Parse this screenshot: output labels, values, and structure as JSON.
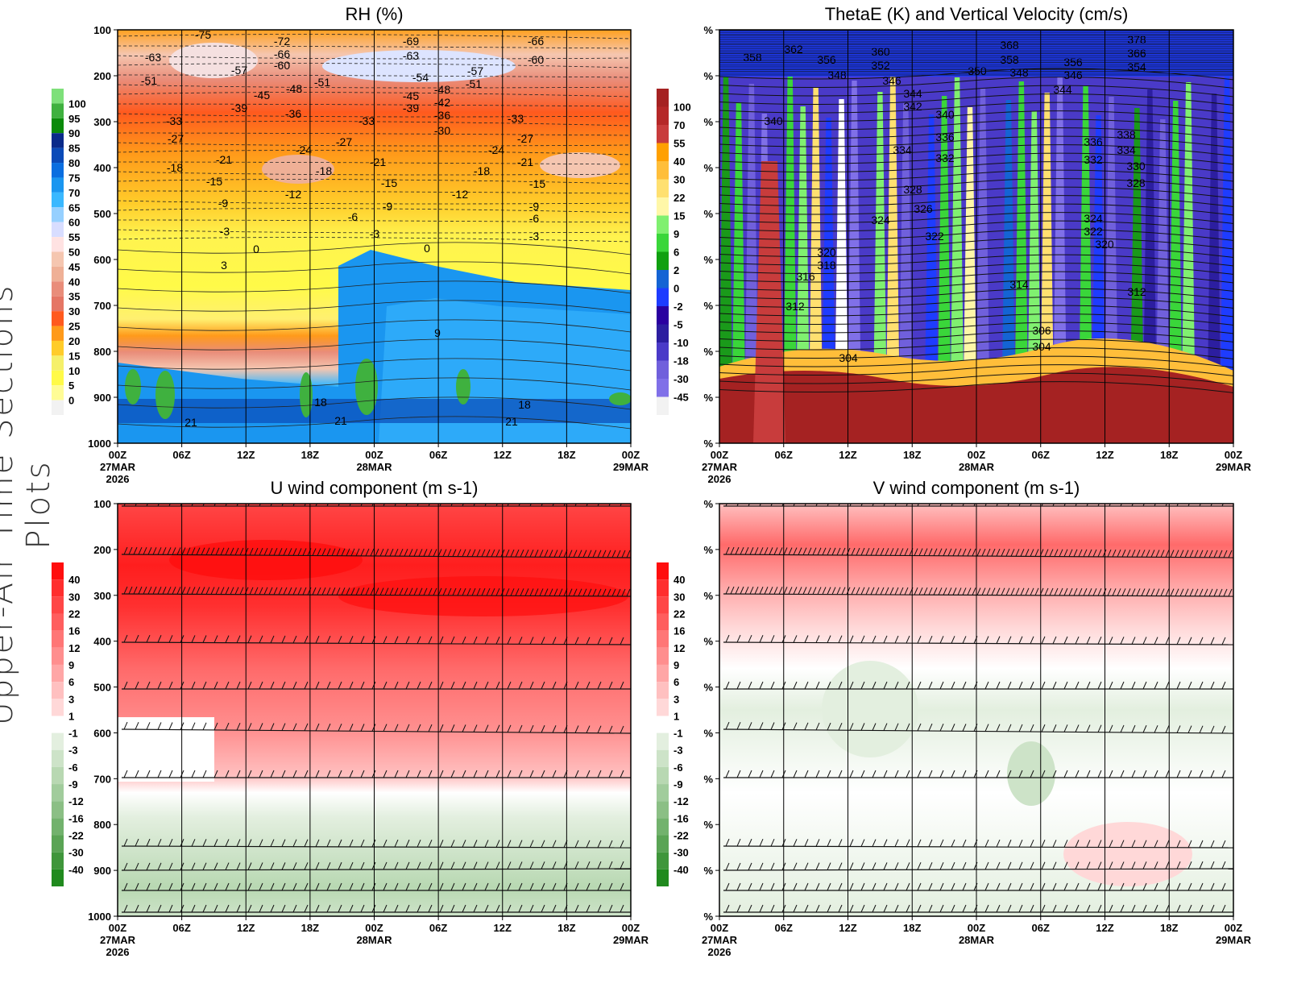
{
  "page_title": "Upper-Air Time Sections Plots",
  "chart_data": [
    {
      "type": "heatmap",
      "title": "RH (%)",
      "yticks": [
        "100",
        "200",
        "300",
        "400",
        "500",
        "600",
        "700",
        "800",
        "900",
        "1000"
      ],
      "xticks": [
        "00Z",
        "06Z",
        "12Z",
        "18Z",
        "00Z",
        "06Z",
        "12Z",
        "18Z",
        "00Z"
      ],
      "xdates": {
        "start": "27MAR",
        "mid": "28MAR",
        "end": "29MAR",
        "year": "2026"
      },
      "colorbar": [
        "100",
        "95",
        "90",
        "85",
        "80",
        "75",
        "70",
        "65",
        "60",
        "55",
        "50",
        "45",
        "40",
        "35",
        "30",
        "25",
        "20",
        "15",
        "10",
        "5",
        "0"
      ],
      "contour_labels": [
        "-75",
        "-72",
        "-69",
        "-66",
        "-66",
        "-63",
        "-63",
        "-60",
        "-60",
        "-57",
        "-57",
        "-51",
        "-54",
        "-51",
        "-51",
        "-48",
        "-48",
        "-45",
        "-45",
        "-42",
        "-39",
        "-39",
        "-36",
        "-36",
        "-33",
        "-33",
        "-33",
        "-30",
        "-27",
        "-27",
        "-27",
        "-24",
        "-24",
        "-21",
        "-21",
        "-21",
        "-18",
        "-18",
        "-18",
        "-15",
        "-15",
        "-15",
        "-12",
        "-12",
        "-9",
        "-9",
        "-9",
        "-6",
        "-6",
        "-3",
        "-3",
        "-3",
        "0",
        "0",
        "3",
        "9",
        "18",
        "18",
        "21",
        "21",
        "21"
      ]
    },
    {
      "type": "heatmap",
      "title": "ThetaE (K) and Vertical Velocity (cm/s)",
      "yticks": [
        "%",
        "%",
        "%",
        "%",
        "%",
        "%",
        "%",
        "%",
        "%",
        "%"
      ],
      "xticks": [
        "00Z",
        "06Z",
        "12Z",
        "18Z",
        "00Z",
        "06Z",
        "12Z",
        "18Z",
        "00Z"
      ],
      "xdates": {
        "start": "27MAR",
        "mid": "28MAR",
        "end": "29MAR",
        "year": "2026"
      },
      "colorbar": [
        "100",
        "70",
        "55",
        "40",
        "30",
        "22",
        "15",
        "9",
        "6",
        "2",
        "0",
        "-2",
        "-5",
        "-10",
        "-18",
        "-30",
        "-45"
      ],
      "contour_labels": [
        "358",
        "362",
        "356",
        "360",
        "352",
        "348",
        "346",
        "368",
        "358",
        "350",
        "348",
        "378",
        "366",
        "354",
        "356",
        "346",
        "344",
        "344",
        "342",
        "340",
        "340",
        "338",
        "336",
        "336",
        "334",
        "334",
        "332",
        "332",
        "330",
        "328",
        "328",
        "326",
        "324",
        "324",
        "322",
        "322",
        "320",
        "320",
        "318",
        "316",
        "314",
        "312",
        "312",
        "306",
        "304",
        "304"
      ]
    },
    {
      "type": "heatmap",
      "title": "U wind component (m s-1)",
      "yticks": [
        "100",
        "200",
        "300",
        "400",
        "500",
        "600",
        "700",
        "800",
        "900",
        "1000"
      ],
      "xticks": [
        "00Z",
        "06Z",
        "12Z",
        "18Z",
        "00Z",
        "06Z",
        "12Z",
        "18Z",
        "00Z"
      ],
      "xdates": {
        "start": "27MAR",
        "mid": "28MAR",
        "end": "29MAR",
        "year": "2026"
      },
      "colorbar": [
        "40",
        "30",
        "22",
        "16",
        "12",
        "9",
        "6",
        "3",
        "1",
        "-1",
        "-3",
        "-6",
        "-9",
        "-12",
        "-16",
        "-22",
        "-30",
        "-40"
      ]
    },
    {
      "type": "heatmap",
      "title": "V wind component (m s-1)",
      "yticks": [
        "%",
        "%",
        "%",
        "%",
        "%",
        "%",
        "%",
        "%",
        "%",
        "%"
      ],
      "xticks": [
        "00Z",
        "06Z",
        "12Z",
        "18Z",
        "00Z",
        "06Z",
        "12Z",
        "18Z",
        "00Z"
      ],
      "xdates": {
        "start": "27MAR",
        "mid": "28MAR",
        "end": "29MAR",
        "year": "2026"
      },
      "colorbar": [
        "40",
        "30",
        "22",
        "16",
        "12",
        "9",
        "6",
        "3",
        "1",
        "-1",
        "-3",
        "-6",
        "-9",
        "-12",
        "-16",
        "-22",
        "-30",
        "-40"
      ]
    }
  ]
}
